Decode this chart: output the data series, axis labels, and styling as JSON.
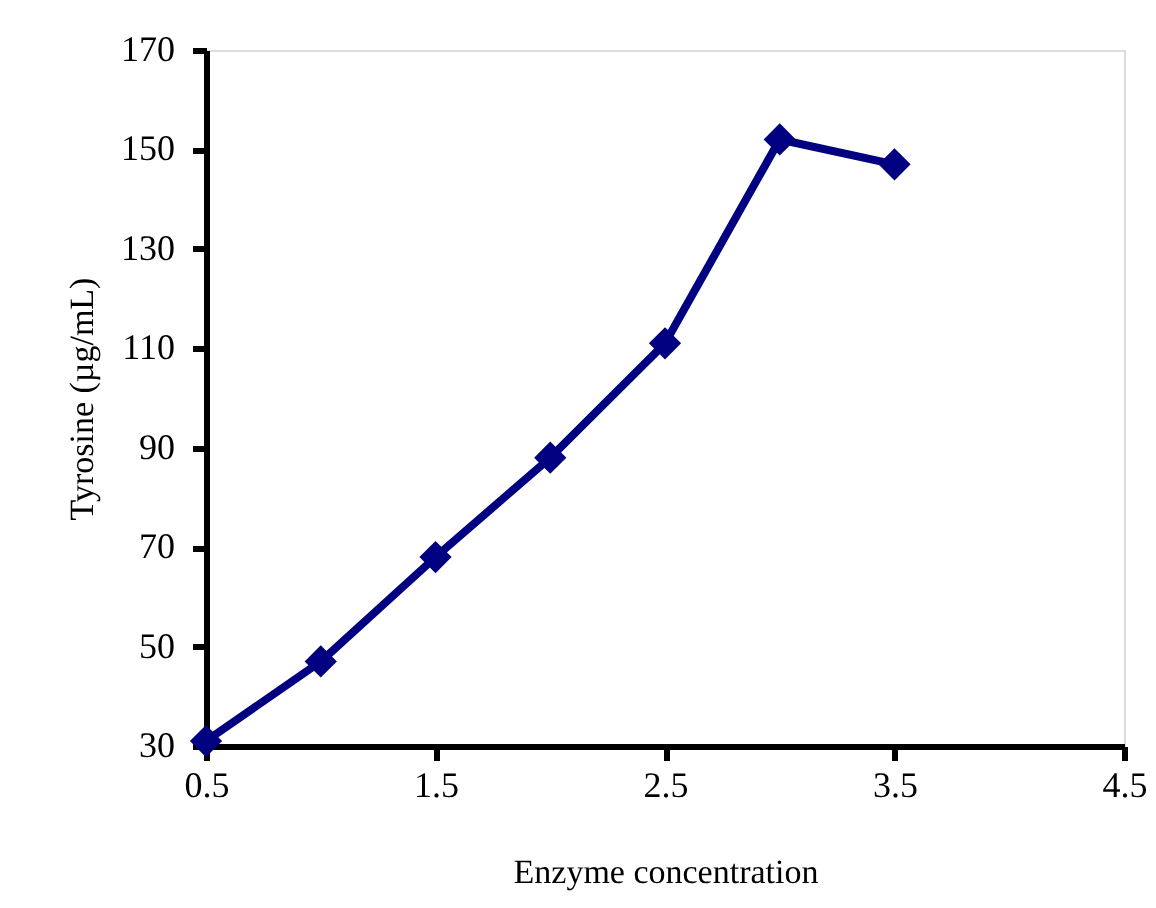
{
  "chart_data": {
    "type": "line",
    "xlabel": "Enzyme concentration",
    "ylabel": "Tyrosine (µg/mL)",
    "x": [
      0.5,
      1,
      1.5,
      2,
      2.5,
      3,
      3.5
    ],
    "series": [
      {
        "color": "#000080",
        "values": [
          31,
          47,
          68,
          88,
          111,
          152,
          147
        ]
      }
    ],
    "xlim": [
      0.5,
      4.5
    ],
    "xticks": [
      0.5,
      1.5,
      2.5,
      3.5,
      4.5
    ],
    "ylim": [
      30,
      170
    ],
    "yticks": [
      30,
      50,
      70,
      90,
      110,
      130,
      150,
      170
    ],
    "grid": false,
    "legend": false,
    "marker": "diamond",
    "line_style": "solid"
  }
}
